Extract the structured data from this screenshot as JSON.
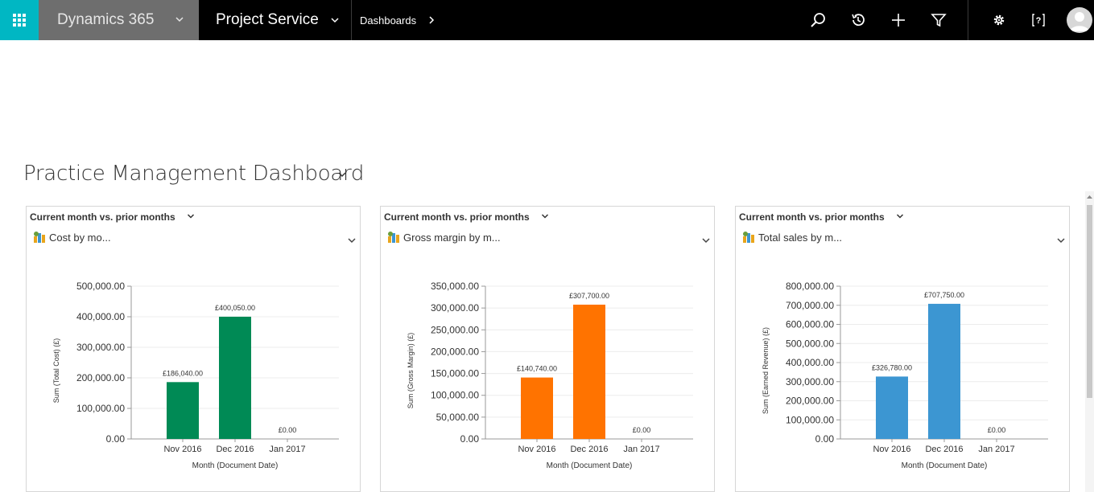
{
  "nav": {
    "app_launcher_icon": "waffle-icon",
    "product": "Dynamics 365",
    "app_name": "Project Service",
    "breadcrumb": "Dashboards",
    "icons": [
      "search-icon",
      "history-icon",
      "plus-icon",
      "filter-icon",
      "gear-icon",
      "help-icon",
      "user-avatar-icon"
    ]
  },
  "dashboard": {
    "title": "Practice Management Dashboard"
  },
  "cards": [
    {
      "view_name": "Current month vs. prior months",
      "chart_name": "Cost by mo...",
      "chart_data": {
        "type": "bar",
        "categories": [
          "Nov 2016",
          "Dec 2016",
          "Jan 2017"
        ],
        "values": [
          186040,
          400050,
          0
        ],
        "value_labels": [
          "£186,040.00",
          "£400,050.00",
          "£0.00"
        ],
        "yticks": [
          "0.00",
          "100,000.00",
          "200,000.00",
          "300,000.00",
          "400,000.00",
          "500,000.00"
        ],
        "ylim": [
          0,
          500000
        ],
        "xlabel": "Month (Document Date)",
        "ylabel": "Sum (Total Cost) (£)",
        "color": "#008a55"
      }
    },
    {
      "view_name": "Current month vs. prior months",
      "chart_name": "Gross margin by m...",
      "chart_data": {
        "type": "bar",
        "categories": [
          "Nov 2016",
          "Dec 2016",
          "Jan 2017"
        ],
        "values": [
          140740,
          307700,
          0
        ],
        "value_labels": [
          "£140,740.00",
          "£307,700.00",
          "£0.00"
        ],
        "yticks": [
          "0.00",
          "50,000.00",
          "100,000.00",
          "150,000.00",
          "200,000.00",
          "250,000.00",
          "300,000.00",
          "350,000.00"
        ],
        "ylim": [
          0,
          350000
        ],
        "xlabel": "Month (Document Date)",
        "ylabel": "Sum (Gross Margin) (£)",
        "color": "#ff7300"
      }
    },
    {
      "view_name": "Current month vs. prior months",
      "chart_name": "Total sales by m...",
      "chart_data": {
        "type": "bar",
        "categories": [
          "Nov 2016",
          "Dec 2016",
          "Jan 2017"
        ],
        "values": [
          326780,
          707750,
          0
        ],
        "value_labels": [
          "£326,780.00",
          "£707,750.00",
          "£0.00"
        ],
        "yticks": [
          "0.00",
          "100,000.00",
          "200,000.00",
          "300,000.00",
          "400,000.00",
          "500,000.00",
          "600,000.00",
          "700,000.00",
          "800,000.00"
        ],
        "ylim": [
          0,
          800000
        ],
        "xlabel": "Month (Document Date)",
        "ylabel": "Sum (Earned Revenue) (£)",
        "color": "#3c96d2"
      }
    }
  ]
}
